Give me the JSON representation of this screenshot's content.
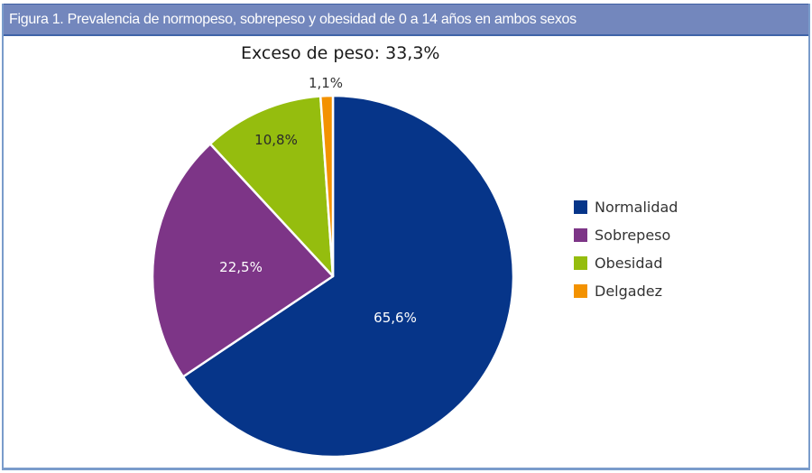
{
  "header": {
    "title": "Figura 1.  Prevalencia de normopeso, sobrepeso y obesidad de 0 a 14 años en ambos sexos"
  },
  "chart": {
    "title": "Exceso de peso: 33,3%"
  },
  "legend": {
    "items": [
      {
        "label": "Normalidad",
        "color": "#063589"
      },
      {
        "label": "Sobrepeso",
        "color": "#7d3587"
      },
      {
        "label": "Obesidad",
        "color": "#95bd0e"
      },
      {
        "label": "Delgadez",
        "color": "#f39200"
      }
    ]
  },
  "slices": [
    {
      "name": "Normalidad",
      "label": "65,6%",
      "value": 65.6,
      "color": "#063589",
      "label_color": "#ffffff"
    },
    {
      "name": "Sobrepeso",
      "label": "22,5%",
      "value": 22.5,
      "color": "#7d3587",
      "label_color": "#ffffff"
    },
    {
      "name": "Obesidad",
      "label": "10,8%",
      "value": 10.8,
      "color": "#95bd0e",
      "label_color": "#2a2a2a"
    },
    {
      "name": "Delgadez",
      "label": "1,1%",
      "value": 1.1,
      "color": "#f39200",
      "label_color": "#333333"
    }
  ],
  "chart_data": {
    "type": "pie",
    "title": "Exceso de peso: 33,3%",
    "figure_caption": "Figura 1.  Prevalencia de normopeso, sobrepeso y obesidad de 0 a 14 años en ambos sexos",
    "categories": [
      "Normalidad",
      "Sobrepeso",
      "Obesidad",
      "Delgadez"
    ],
    "values": [
      65.6,
      22.5,
      10.8,
      1.1
    ],
    "data_labels": [
      "65,6%",
      "22,5%",
      "10,8%",
      "1,1%"
    ],
    "colors": [
      "#063589",
      "#7d3587",
      "#95bd0e",
      "#f39200"
    ],
    "unit": "%",
    "start_angle_deg": 0,
    "direction": "clockwise",
    "legend_position": "right"
  }
}
